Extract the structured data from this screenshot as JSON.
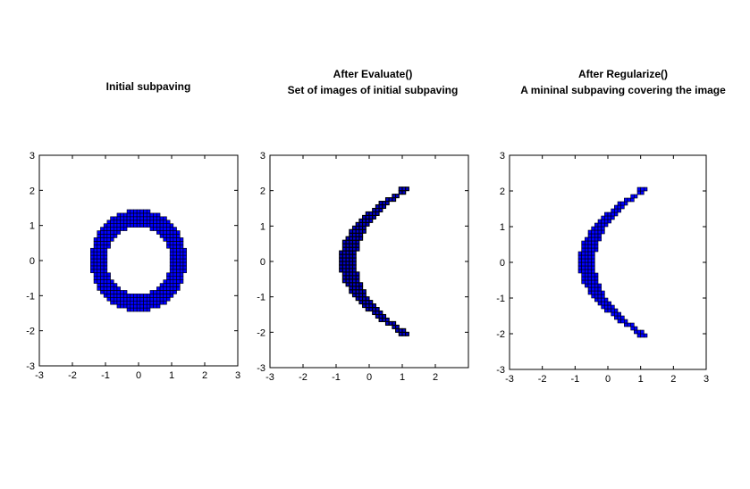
{
  "chart_data": [
    {
      "type": "subpaving",
      "title": [
        "Initial subpaving"
      ],
      "xlim": [
        -3,
        3
      ],
      "ylim": [
        -3,
        3
      ],
      "xticks": [
        "-3",
        "-2",
        "-1",
        "0",
        "1",
        "2",
        "3"
      ],
      "yticks": [
        "-3",
        "-2",
        "-1",
        "0",
        "1",
        "2",
        "3"
      ],
      "shape": "annulus",
      "inner_radius": 0.95,
      "outer_radius": 1.45,
      "box_size": 0.1,
      "fill_color": "#0000ff",
      "edge_color": "#000000"
    },
    {
      "type": "subpaving",
      "title": [
        "After Evaluate()",
        "Set of images of initial subpaving"
      ],
      "xlim": [
        -3,
        3
      ],
      "ylim": [
        -3,
        3
      ],
      "xticks": [
        "-3",
        "-2",
        "-1",
        "0",
        "1",
        "2"
      ],
      "yticks": [
        "-3",
        "-2",
        "-1",
        "0",
        "1",
        "2",
        "3"
      ],
      "shape": "crescent",
      "t_range": [
        -1.45,
        1.45
      ],
      "vertex": [
        -0.85,
        0
      ],
      "tips": [
        [
          1.05,
          2.05
        ],
        [
          1.05,
          -2.05
        ]
      ],
      "box_size": 0.1,
      "fill_color": "#0000cc",
      "edge_color": "#000000",
      "dense_edges": true
    },
    {
      "type": "subpaving",
      "title": [
        "After Regularize()",
        "A mininal subpaving covering the image"
      ],
      "xlim": [
        -3,
        3
      ],
      "ylim": [
        -3,
        3
      ],
      "xticks": [
        "-3",
        "-2",
        "-1",
        "0",
        "1",
        "2",
        "3"
      ],
      "yticks": [
        "-3",
        "-2",
        "-1",
        "0",
        "1",
        "2",
        "3"
      ],
      "shape": "crescent",
      "t_range": [
        -1.45,
        1.45
      ],
      "vertex": [
        -0.85,
        0
      ],
      "tips": [
        [
          1.05,
          2.05
        ],
        [
          1.05,
          -2.05
        ]
      ],
      "box_size": 0.1,
      "fill_color": "#0000ff",
      "edge_color": "#000000",
      "dense_edges": false
    }
  ]
}
